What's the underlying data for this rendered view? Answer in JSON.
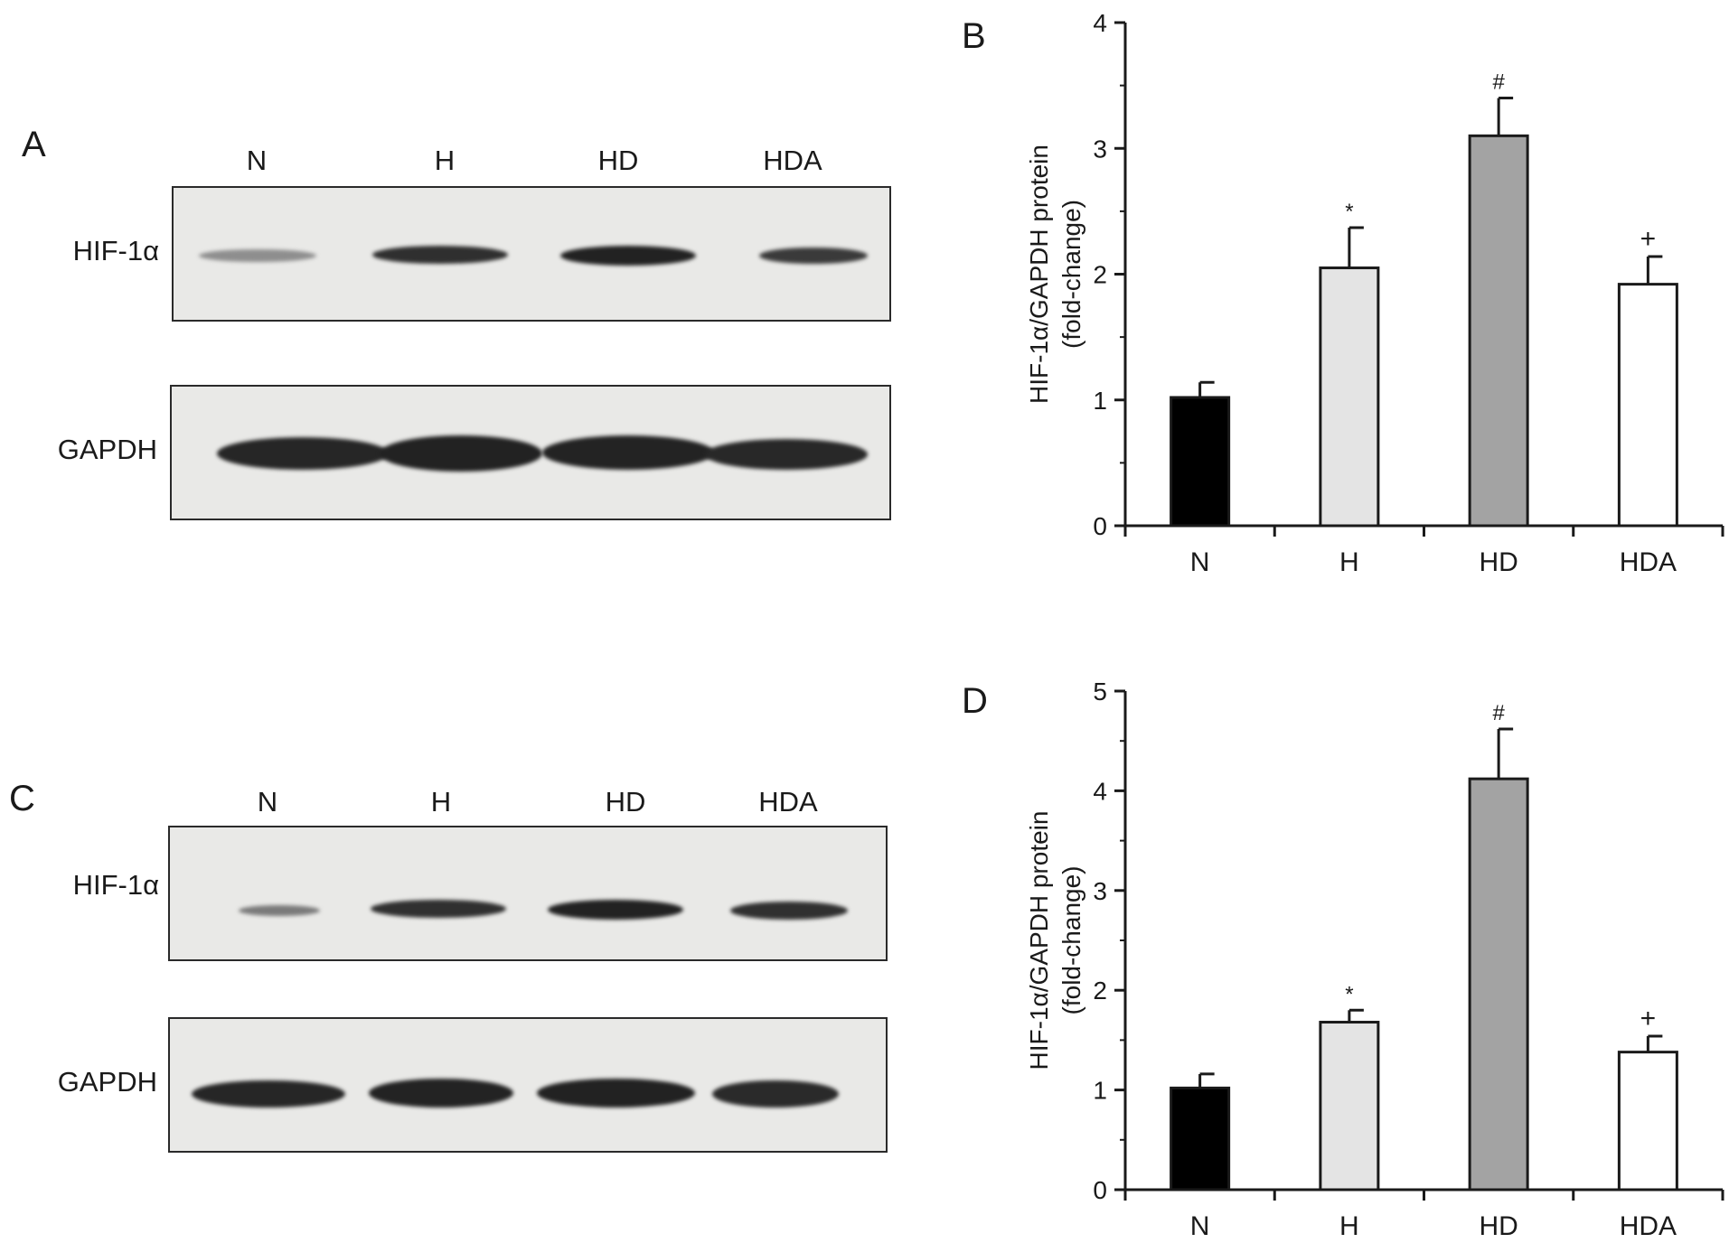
{
  "figure": {
    "panels": {
      "A": {
        "letter": "A",
        "lanes": [
          "N",
          "H",
          "HD",
          "HDA"
        ],
        "rows": [
          "HIF-1α",
          "GAPDH"
        ]
      },
      "C": {
        "letter": "C",
        "lanes": [
          "N",
          "H",
          "HD",
          "HDA"
        ],
        "rows": [
          "HIF-1α",
          "GAPDH"
        ]
      }
    }
  },
  "chart_data": [
    {
      "panel": "B",
      "type": "bar",
      "ylabel": [
        "HIF-1α/GAPDH protein",
        "(fold-change)"
      ],
      "categories": [
        "N",
        "H",
        "HD",
        "HDA"
      ],
      "values": [
        1.02,
        2.05,
        3.1,
        1.92
      ],
      "errors": [
        0.12,
        0.32,
        0.3,
        0.22
      ],
      "annotations": [
        "",
        "*",
        "#",
        "+"
      ],
      "colors": [
        "#000000",
        "#e4e4e4",
        "#a3a3a3",
        "#ffffff"
      ],
      "ylim": [
        0,
        4
      ],
      "yticks": [
        0,
        1,
        2,
        3,
        4
      ]
    },
    {
      "panel": "D",
      "type": "bar",
      "ylabel": [
        "HIF-1α/GAPDH protein",
        "(fold-change)"
      ],
      "categories": [
        "N",
        "H",
        "HD",
        "HDA"
      ],
      "values": [
        1.02,
        1.68,
        4.12,
        1.38
      ],
      "errors": [
        0.14,
        0.12,
        0.5,
        0.16
      ],
      "annotations": [
        "",
        "*",
        "#",
        "+"
      ],
      "colors": [
        "#000000",
        "#e4e4e4",
        "#a3a3a3",
        "#ffffff"
      ],
      "ylim": [
        0,
        5
      ],
      "yticks": [
        0,
        1,
        2,
        3,
        4,
        5
      ]
    }
  ]
}
